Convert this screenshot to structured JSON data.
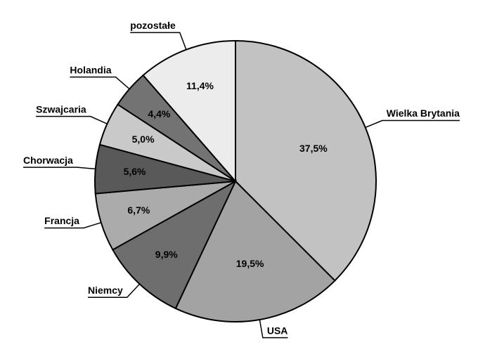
{
  "chart_data": {
    "type": "pie",
    "categories": [
      "Wielka Brytania",
      "USA",
      "Niemcy",
      "Francja",
      "Chorwacja",
      "Szwajcaria",
      "Holandia",
      "pozostałe"
    ],
    "values": [
      37.5,
      19.5,
      9.9,
      6.7,
      5.6,
      5.0,
      4.4,
      11.4
    ],
    "value_labels": [
      "37,5%",
      "19,5%",
      "9,9%",
      "6,7%",
      "5,6%",
      "5,0%",
      "4,4%",
      "11,4%"
    ],
    "colors": [
      "#c2c2c2",
      "#a3a3a3",
      "#6e6e6e",
      "#ababab",
      "#595959",
      "#c9c9c9",
      "#737373",
      "#ececec"
    ]
  }
}
